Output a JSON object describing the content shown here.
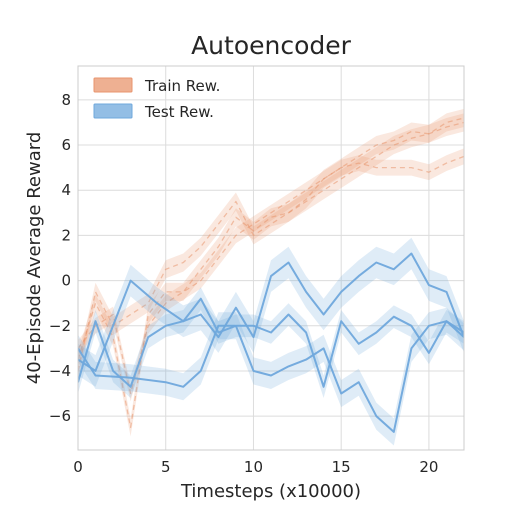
{
  "chart_data": {
    "type": "line",
    "title": "Autoencoder",
    "xlabel": "Timesteps (x10000)",
    "ylabel": "40-Episode Average Reward",
    "xlim": [
      0,
      22
    ],
    "ylim": [
      -7.5,
      9.5
    ],
    "xticks": [
      0,
      5,
      10,
      15,
      20
    ],
    "yticks": [
      -6,
      -4,
      -2,
      0,
      2,
      4,
      6,
      8
    ],
    "grid": true,
    "legend_position": "top-left",
    "legend": [
      {
        "label": "Train Rew.",
        "color": "#e8956e"
      },
      {
        "label": "Test Rew.",
        "color": "#6fa8dc"
      }
    ],
    "series": [
      {
        "group": "Train Rew.",
        "color": "#e8956e",
        "x": [
          0,
          1,
          2,
          3,
          4,
          5,
          6,
          7,
          8,
          9,
          10,
          11,
          12,
          13,
          14,
          15,
          16,
          17,
          18,
          19,
          20,
          21,
          22
        ],
        "y": [
          -3.5,
          -1.0,
          -2.5,
          -6.5,
          -1.5,
          -0.5,
          -0.5,
          0.5,
          1.5,
          2.8,
          2.2,
          2.8,
          3.0,
          3.6,
          4.5,
          5.0,
          5.5,
          6.0,
          6.2,
          6.6,
          6.5,
          7.0,
          7.2
        ],
        "band": 0.4
      },
      {
        "group": "Train Rew.",
        "color": "#e8956e",
        "x": [
          0,
          1,
          2,
          3,
          4,
          5,
          6,
          7,
          8,
          9,
          10,
          11,
          12,
          13,
          14,
          15,
          16,
          17,
          18,
          19,
          20,
          21,
          22
        ],
        "y": [
          -4.0,
          -0.5,
          -2.0,
          -1.5,
          -1.0,
          0.5,
          0.8,
          1.5,
          2.5,
          3.5,
          2.0,
          2.5,
          3.0,
          3.5,
          4.0,
          4.5,
          5.0,
          5.5,
          6.0,
          6.3,
          6.5,
          6.8,
          7.0
        ],
        "band": 0.4
      },
      {
        "group": "Train Rew.",
        "color": "#e8956e",
        "x": [
          0,
          1,
          2,
          3,
          4,
          5,
          6,
          7,
          8,
          9,
          10,
          11,
          12,
          13,
          14,
          15,
          16,
          17,
          18,
          19,
          20,
          21,
          22
        ],
        "y": [
          -3.0,
          -2.0,
          -1.5,
          -5.0,
          -2.0,
          -1.0,
          -0.5,
          0.0,
          1.0,
          2.0,
          2.5,
          3.0,
          3.5,
          4.0,
          4.5,
          5.0,
          5.2,
          5.0,
          5.0,
          5.0,
          4.8,
          5.2,
          5.5
        ],
        "band": 0.35
      },
      {
        "group": "Test Rew.",
        "color": "#6fa8dc",
        "x": [
          0,
          1,
          3,
          4.5,
          6,
          7,
          8,
          9,
          10,
          11,
          12,
          13,
          14,
          15,
          16,
          17,
          18,
          19,
          20,
          21,
          22
        ],
        "y": [
          -3.5,
          -4.0,
          0.0,
          -1.0,
          -1.8,
          -1.5,
          -2.5,
          -1.2,
          -2.5,
          0.2,
          0.8,
          -0.5,
          -1.5,
          -0.5,
          0.2,
          0.8,
          0.5,
          1.2,
          -0.2,
          -0.5,
          -2.5
        ],
        "band": 0.7
      },
      {
        "group": "Test Rew.",
        "color": "#6fa8dc",
        "x": [
          0,
          1,
          3,
          5,
          6,
          7,
          8,
          9,
          10,
          11,
          12,
          13,
          14,
          15,
          16,
          17,
          18,
          19,
          20,
          21,
          22
        ],
        "y": [
          -3.0,
          -4.2,
          -4.3,
          -4.5,
          -4.7,
          -4.0,
          -2.0,
          -2.0,
          -4.0,
          -4.2,
          -3.8,
          -3.5,
          -3.0,
          -5.0,
          -4.5,
          -6.0,
          -6.7,
          -3.0,
          -2.0,
          -1.8,
          -2.5
        ],
        "band": 0.6
      },
      {
        "group": "Test Rew.",
        "color": "#6fa8dc",
        "x": [
          0,
          1,
          2,
          3,
          4,
          5,
          6,
          7,
          8,
          9,
          10,
          11,
          12,
          13,
          14,
          15,
          16,
          17,
          18,
          19,
          20,
          21,
          22
        ],
        "y": [
          -4.5,
          -1.8,
          -4.0,
          -4.7,
          -2.5,
          -2.0,
          -1.8,
          -0.8,
          -2.3,
          -2.0,
          -2.0,
          -2.3,
          -1.5,
          -2.3,
          -4.7,
          -1.8,
          -2.8,
          -2.3,
          -1.6,
          -2.0,
          -3.2,
          -1.8,
          -2.3
        ],
        "band": 0.5
      }
    ]
  }
}
